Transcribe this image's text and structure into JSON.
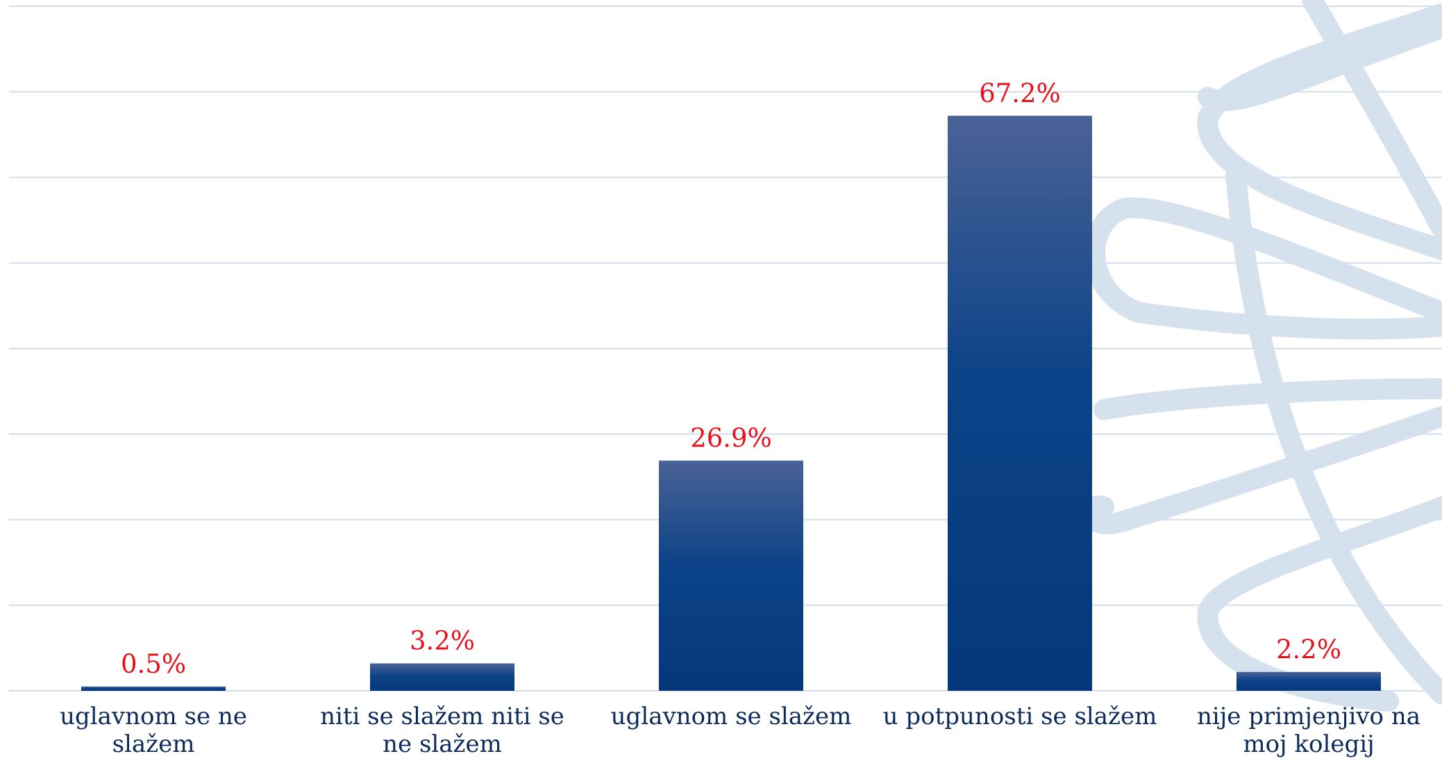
{
  "chart_data": {
    "type": "bar",
    "categories": [
      "uglavnom se ne slažem",
      "niti se slažem niti se ne slažem",
      "uglavnom se slažem",
      "u potpunosti se slažem",
      "nije primjenjivo na moj kolegij"
    ],
    "values": [
      0.5,
      3.2,
      26.9,
      67.2,
      2.2
    ],
    "value_labels": [
      "0.5%",
      "3.2%",
      "26.9%",
      "67.2%",
      "2.2%"
    ],
    "color": "#0a3a80",
    "label_color": "#e8101a",
    "ylim": [
      0,
      80
    ],
    "yticks": [
      0,
      10,
      20,
      30,
      40,
      50,
      60,
      70,
      80
    ],
    "grid": true
  }
}
